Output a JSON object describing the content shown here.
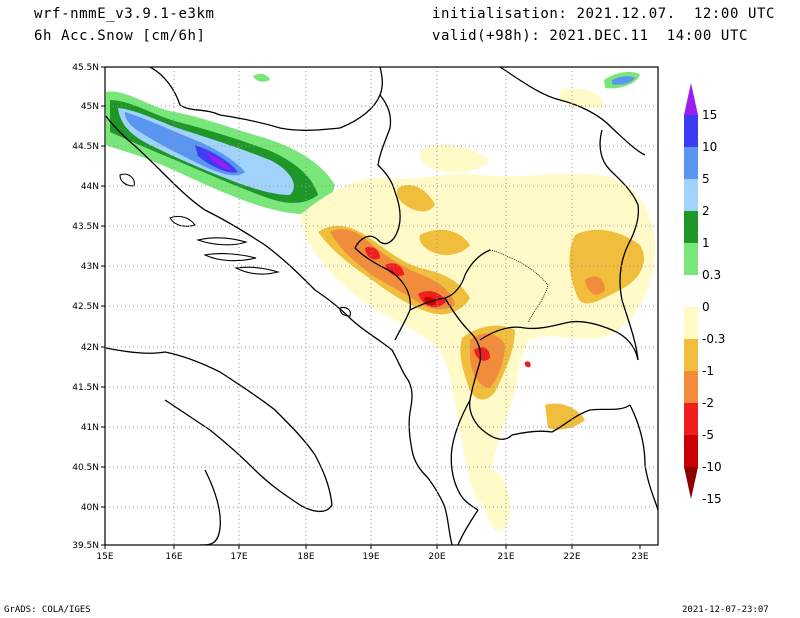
{
  "header": {
    "model": "wrf-nmmE_v3.9.1-e3km",
    "field": "6h Acc.Snow [cm/6h]",
    "init": "initialisation: 2021.12.07.  12:00 UTC",
    "valid": "valid(+98h): 2021.DEC.11  14:00 UTC"
  },
  "footer": {
    "left": "GrADS: COLA/IGES",
    "right": "2021-12-07-23:07"
  },
  "map": {
    "lon_ticks": [
      "15E",
      "16E",
      "17E",
      "18E",
      "19E",
      "20E",
      "21E",
      "22E",
      "23E"
    ],
    "lat_ticks": [
      "45.5N",
      "45N",
      "44.5N",
      "44N",
      "43.5N",
      "43N",
      "42.5N",
      "42N",
      "41.5N",
      "41N",
      "40.5N",
      "40N",
      "39.5N"
    ]
  },
  "legend": {
    "labels": [
      "15",
      "10",
      "5",
      "2",
      "1",
      "0.3",
      "0",
      "-0.3",
      "-1",
      "-2",
      "-5",
      "-10",
      "-15"
    ],
    "colors": [
      "#9a1ef0",
      "#3c3cf5",
      "#5a96f0",
      "#a0d2fa",
      "#1e9628",
      "#78e678",
      "#ffffff",
      "#fffac8",
      "#f0be3c",
      "#f08c3c",
      "#f01e1e",
      "#c80000",
      "#8c0000"
    ]
  }
}
